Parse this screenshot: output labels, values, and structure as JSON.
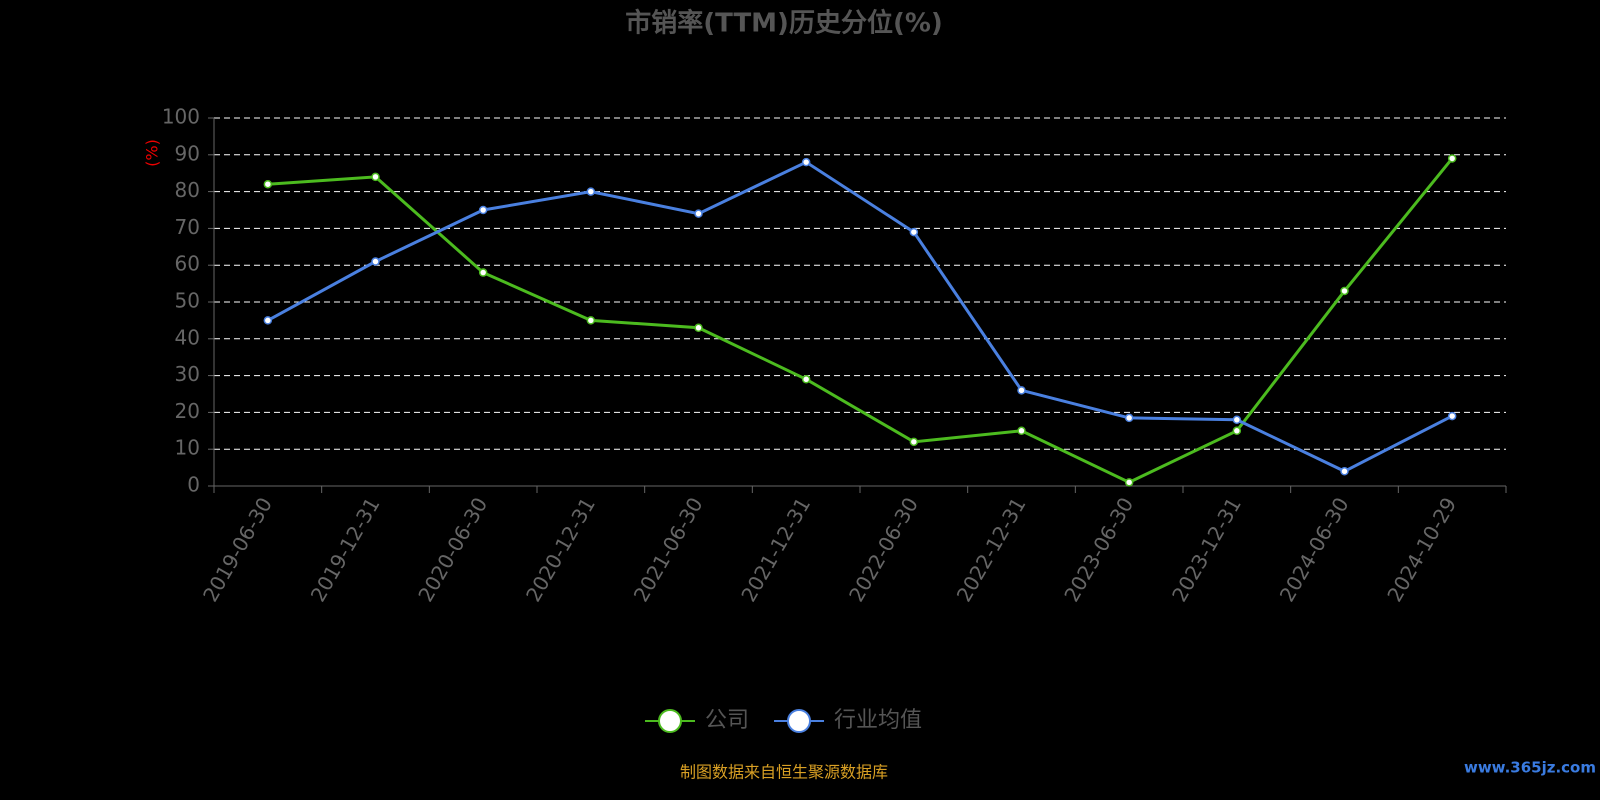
{
  "chart_data": {
    "type": "line",
    "title": "市销率(TTM)历史分位(%)",
    "y_label": "(%)",
    "categories": [
      "2019-06-30",
      "2019-12-31",
      "2020-06-30",
      "2020-12-31",
      "2021-06-30",
      "2021-12-31",
      "2022-06-30",
      "2022-12-31",
      "2023-06-30",
      "2023-12-31",
      "2024-06-30",
      "2024-10-29"
    ],
    "series": [
      {
        "name": "公司",
        "color": "#4cbb1f",
        "values": [
          82,
          84,
          58,
          45,
          43,
          29,
          12,
          15,
          1,
          15,
          53,
          89
        ]
      },
      {
        "name": "行业均值",
        "color": "#4a80e0",
        "values": [
          45,
          61,
          75,
          80,
          74,
          88,
          69,
          26,
          18.5,
          18,
          4,
          19
        ]
      }
    ],
    "ylim": [
      0,
      100
    ],
    "yticks": [
      0,
      10,
      20,
      30,
      40,
      50,
      60,
      70,
      80,
      90,
      100
    ],
    "grid": true,
    "legend": "bottom",
    "source": "制图数据来自恒生聚源数据库",
    "watermark": "www.365jz.com"
  }
}
